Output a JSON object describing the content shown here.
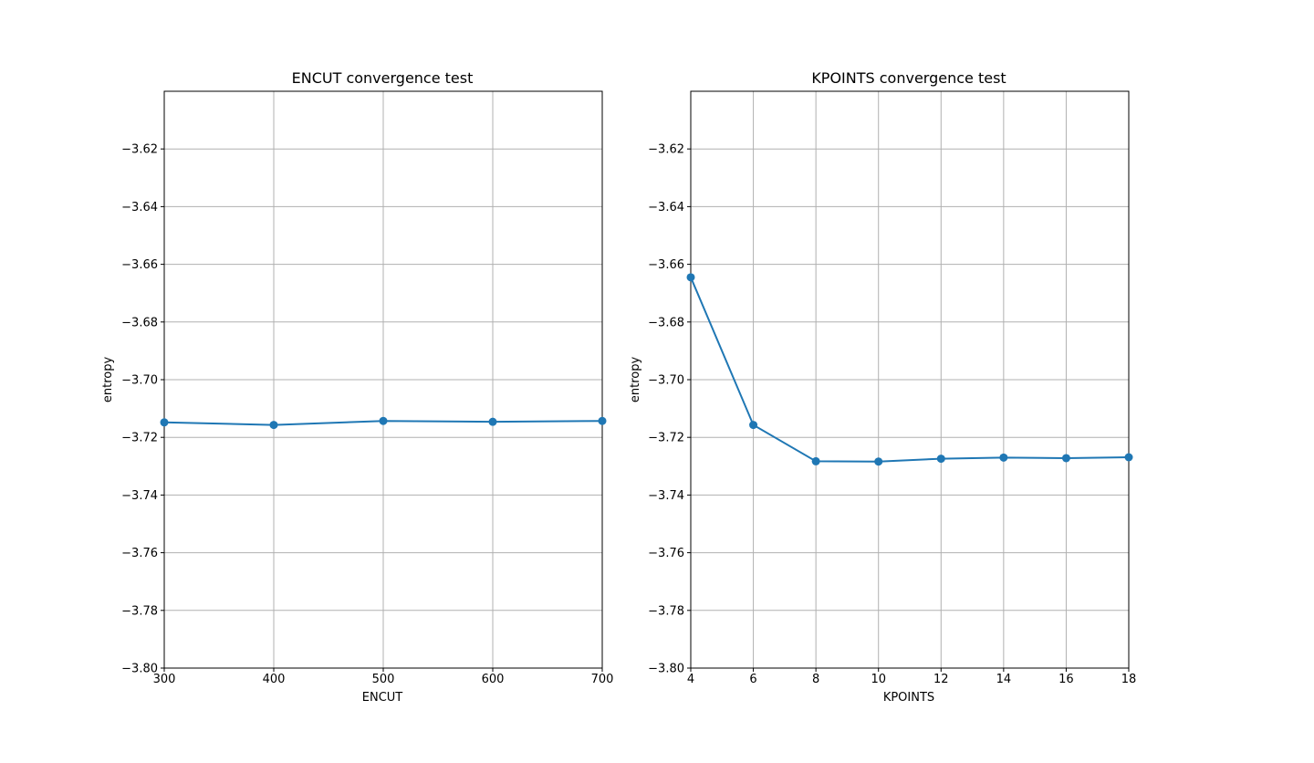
{
  "chart_data": [
    {
      "type": "line",
      "title": "ENCUT convergence test",
      "xlabel": "ENCUT",
      "ylabel": "entropy",
      "x": [
        300,
        400,
        500,
        600,
        700
      ],
      "series": [
        {
          "values": [
            -3.7148,
            -3.7157,
            -3.7143,
            -3.7146,
            -3.7143
          ],
          "color": "#1f77b4"
        }
      ],
      "xlim": [
        300,
        700
      ],
      "ylim": [
        -3.8,
        -3.6
      ],
      "xticks": [
        "300",
        "400",
        "500",
        "600",
        "700"
      ],
      "yticks": [
        "-3.80",
        "-3.78",
        "-3.76",
        "-3.74",
        "-3.72",
        "-3.70",
        "-3.68",
        "-3.66",
        "-3.64",
        "-3.62"
      ],
      "ytick_values": [
        -3.8,
        -3.78,
        -3.76,
        -3.74,
        -3.72,
        -3.7,
        -3.68,
        -3.66,
        -3.64,
        -3.62
      ],
      "grid": true,
      "marker": "circle"
    },
    {
      "type": "line",
      "title": "KPOINTS convergence test",
      "xlabel": "KPOINTS",
      "ylabel": "entropy",
      "x": [
        4,
        6,
        8,
        10,
        12,
        14,
        16,
        18
      ],
      "series": [
        {
          "values": [
            -3.6645,
            -3.7157,
            -3.7283,
            -3.7284,
            -3.7274,
            -3.727,
            -3.7272,
            -3.7269
          ],
          "color": "#1f77b4"
        }
      ],
      "xlim": [
        4,
        18
      ],
      "ylim": [
        -3.8,
        -3.6
      ],
      "xticks": [
        "4",
        "6",
        "8",
        "10",
        "12",
        "14",
        "16",
        "18"
      ],
      "yticks": [
        "-3.80",
        "-3.78",
        "-3.76",
        "-3.74",
        "-3.72",
        "-3.70",
        "-3.68",
        "-3.66",
        "-3.64",
        "-3.62"
      ],
      "ytick_values": [
        -3.8,
        -3.78,
        -3.76,
        -3.74,
        -3.72,
        -3.7,
        -3.68,
        -3.66,
        -3.64,
        -3.62
      ],
      "grid": true,
      "marker": "circle"
    }
  ]
}
